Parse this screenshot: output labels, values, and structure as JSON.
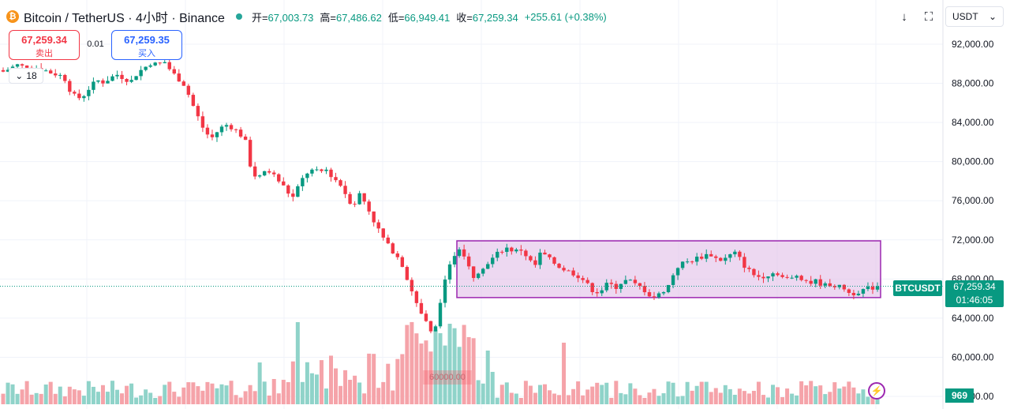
{
  "header": {
    "coin_letter": "₿",
    "symbol_text": "Bitcoin / TetherUS · 4小时 · Binance",
    "open_label": "开=",
    "open_value": "67,003.73",
    "high_label": "高=",
    "high_value": "67,486.62",
    "low_label": "低=",
    "low_value": "66,949.41",
    "close_label": "收=",
    "close_value": "67,259.34",
    "change": "+255.61 (+0.38%)"
  },
  "toolbar": {
    "down_glyph": "↓",
    "fullscreen_glyph": "⛶",
    "currency": "USDT",
    "currency_caret": "⌄"
  },
  "trade": {
    "sell_price": "67,259.34",
    "sell_label": "卖出",
    "spread": "0.01",
    "buy_price": "67,259.35",
    "buy_label": "买入"
  },
  "indicator_collapse": {
    "caret": "⌄",
    "count": "18"
  },
  "price_tags": {
    "symbol": "BTCUSDT",
    "last": "67,259.34",
    "countdown": "01:46:05",
    "volume": "969",
    "low_marker": "60000.00"
  },
  "colors": {
    "up": "#089981",
    "down": "#f23645",
    "up_volume": "#8fd3c9",
    "down_volume": "#f5a3a9",
    "box_fill": "#e1bee7",
    "box_border": "#9c27b0",
    "grid": "#f0f3fa"
  },
  "icons": {
    "bolt": "⚡"
  },
  "chart_data": {
    "type": "candlestick",
    "y_axis": {
      "ticks": [
        {
          "value": 92000,
          "label": "92,000.00"
        },
        {
          "value": 88000,
          "label": "88,000.00"
        },
        {
          "value": 84000,
          "label": "84,000.00"
        },
        {
          "value": 80000,
          "label": "80,000.00"
        },
        {
          "value": 76000,
          "label": "76,000.00"
        },
        {
          "value": 72000,
          "label": "72,000.00"
        },
        {
          "value": 68000,
          "label": "68,000.00"
        },
        {
          "value": 64000,
          "label": "64,000.00"
        },
        {
          "value": 60000,
          "label": "60,000.00"
        },
        {
          "value": 56000,
          "label": "56,000.00"
        }
      ],
      "range": [
        56000,
        92000
      ]
    },
    "grid": true,
    "last_price": 67259.34,
    "range_box": {
      "low": 66100,
      "high": 71900
    },
    "close_path": [
      89200,
      89500,
      89900,
      89700,
      89800,
      89600,
      89400,
      89100,
      88900,
      88700,
      87200,
      86400,
      86800,
      87700,
      88300,
      88100,
      88600,
      88900,
      88500,
      88200,
      89100,
      89600,
      90100,
      89900,
      90200,
      89200,
      88500,
      87800,
      86100,
      84500,
      83000,
      82400,
      83200,
      83800,
      83500,
      83000,
      82100,
      78800,
      78300,
      79100,
      78800,
      78000,
      77200,
      76200,
      77600,
      78800,
      79100,
      78900,
      79200,
      78400,
      77800,
      76600,
      75400,
      76700,
      75600,
      74100,
      72800,
      71600,
      70800,
      70100,
      68200,
      66300,
      64700,
      63400,
      61900,
      65800,
      68500,
      70400,
      71400,
      69800,
      68200,
      69100,
      69600,
      70300,
      70900,
      71200,
      70800,
      71000,
      70200,
      69200,
      70800,
      70100,
      69600,
      69100,
      68800,
      68500,
      68100,
      67300,
      66600,
      66900,
      67600,
      67100,
      67700,
      67900,
      67400,
      67100,
      66400,
      66100,
      66700,
      67400,
      69100,
      69600,
      69800,
      70100,
      70300,
      70600,
      70100,
      69900,
      70400,
      70700,
      69500,
      68800,
      68200,
      68300,
      68500,
      68700,
      68100,
      67900,
      68400,
      68000,
      67600,
      67800,
      67300,
      67500,
      67200,
      67100,
      66400,
      66700,
      66900,
      67050,
      67259.34
    ]
  }
}
